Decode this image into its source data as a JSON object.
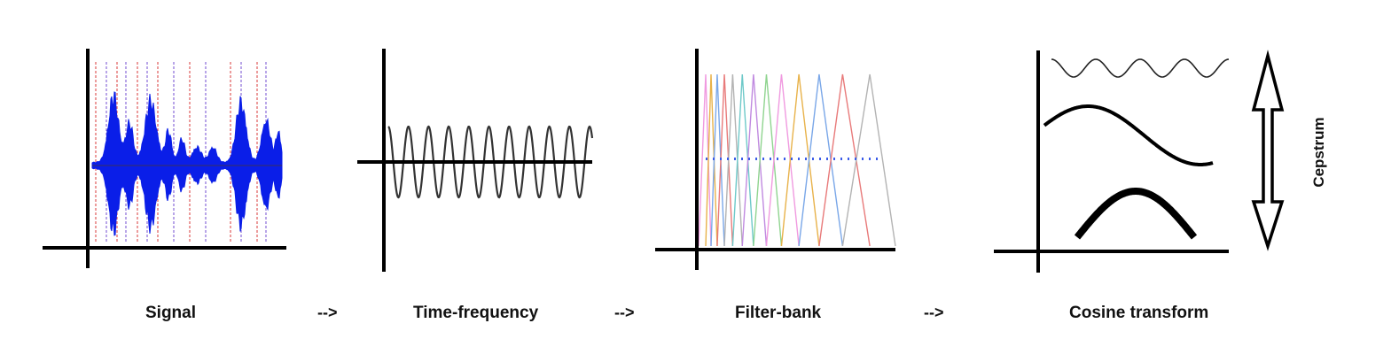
{
  "stages": [
    {
      "label": "Signal"
    },
    {
      "label": "Time-frequency"
    },
    {
      "label": "Filter-bank"
    },
    {
      "label": "Cosine transform"
    }
  ],
  "connector": "-->",
  "side_label": "Cepstrum",
  "colors": {
    "axis": "#000000",
    "signal_wave": "#0a1ee8",
    "signal_markers": [
      "#e05a5a",
      "#8a6ad8"
    ],
    "oscillation": "#333333",
    "filter_colors": [
      "#8fd48f",
      "#f09ae0",
      "#e8b24a",
      "#7aa7e8",
      "#e87a7a",
      "#b3b3b3",
      "#6ec9c9",
      "#c08ae0"
    ],
    "filter_dots": "#3a5be8"
  }
}
